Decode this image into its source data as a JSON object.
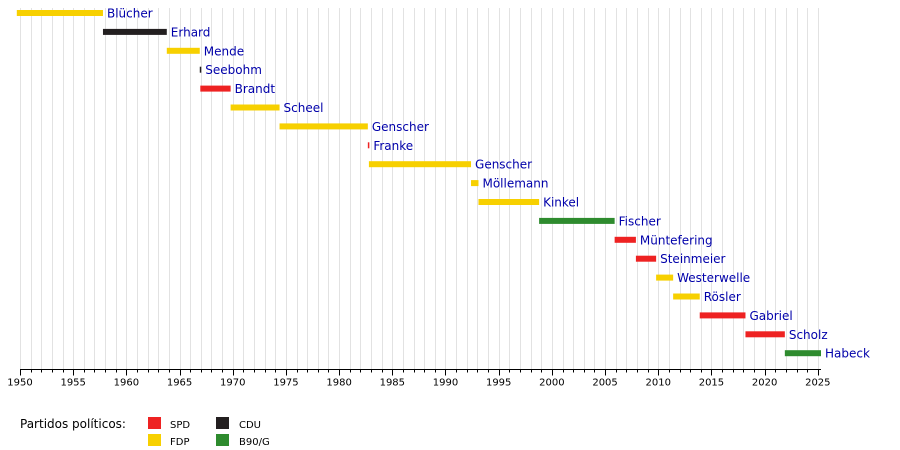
{
  "chart_data": {
    "type": "bar",
    "orientation": "horizontal-timeline",
    "xlim": [
      1950,
      2025.3
    ],
    "x_ticks": [
      "1950",
      "1955",
      "1960",
      "1965",
      "1970",
      "1975",
      "1980",
      "1985",
      "1990",
      "1995",
      "2000",
      "2005",
      "2010",
      "2015",
      "2020",
      "2025"
    ],
    "grid": "vertical, yearly",
    "parties": {
      "SPD": "#ee2222",
      "FDP": "#f7d000",
      "CDU": "#231f20",
      "B90/G": "#2e8b2e"
    },
    "bars": [
      {
        "name": "Blücher",
        "party": "FDP",
        "start": 1949.7,
        "end": 1957.8
      },
      {
        "name": "Erhard",
        "party": "CDU",
        "start": 1957.8,
        "end": 1963.8
      },
      {
        "name": "Mende",
        "party": "FDP",
        "start": 1963.8,
        "end": 1966.9
      },
      {
        "name": "Seebohm",
        "party": "CDU",
        "start": 1966.9,
        "end": 1966.95
      },
      {
        "name": "Brandt",
        "party": "SPD",
        "start": 1966.95,
        "end": 1969.8
      },
      {
        "name": "Scheel",
        "party": "FDP",
        "start": 1969.8,
        "end": 1974.4
      },
      {
        "name": "Genscher",
        "party": "FDP",
        "start": 1974.4,
        "end": 1982.7
      },
      {
        "name": "Franke",
        "party": "SPD",
        "start": 1982.7,
        "end": 1982.8
      },
      {
        "name": "Genscher",
        "party": "FDP",
        "start": 1982.8,
        "end": 1992.4
      },
      {
        "name": "Möllemann",
        "party": "FDP",
        "start": 1992.4,
        "end": 1993.1
      },
      {
        "name": "Kinkel",
        "party": "FDP",
        "start": 1993.1,
        "end": 1998.8
      },
      {
        "name": "Fischer",
        "party": "B90/G",
        "start": 1998.8,
        "end": 2005.9
      },
      {
        "name": "Müntefering",
        "party": "SPD",
        "start": 2005.9,
        "end": 2007.9
      },
      {
        "name": "Steinmeier",
        "party": "SPD",
        "start": 2007.9,
        "end": 2009.8
      },
      {
        "name": "Westerwelle",
        "party": "FDP",
        "start": 2009.8,
        "end": 2011.4
      },
      {
        "name": "Rösler",
        "party": "FDP",
        "start": 2011.4,
        "end": 2013.9
      },
      {
        "name": "Gabriel",
        "party": "SPD",
        "start": 2013.9,
        "end": 2018.2
      },
      {
        "name": "Scholz",
        "party": "SPD",
        "start": 2018.2,
        "end": 2021.9
      },
      {
        "name": "Habeck",
        "party": "B90/G",
        "start": 2021.9,
        "end": 2025.3
      }
    ]
  },
  "legend": {
    "title": "Partidos políticos:",
    "items": [
      {
        "label": "SPD",
        "color": "#ee2222"
      },
      {
        "label": "CDU",
        "color": "#231f20"
      },
      {
        "label": "FDP",
        "color": "#f7d000"
      },
      {
        "label": "B90/G",
        "color": "#2e8b2e"
      }
    ]
  }
}
